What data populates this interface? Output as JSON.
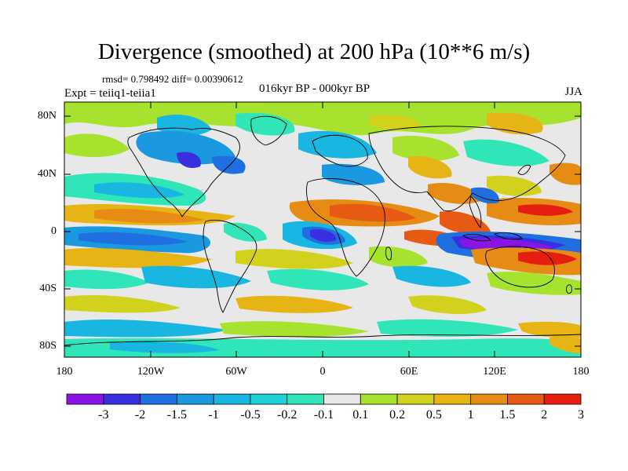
{
  "title": "Divergence (smoothed) at 200 hPa (10**6 m/s)",
  "stats": "rmsd= 0.798492 diff= 0.00390612",
  "experiment": "Expt = teiiq1-teiia1",
  "period": "016kyr BP - 000kyr BP",
  "season": "JJA",
  "lat_labels": [
    "80N",
    "40N",
    "0",
    "40S",
    "80S"
  ],
  "lon_labels": [
    "180",
    "120W",
    "60W",
    "0",
    "60E",
    "120E",
    "180"
  ],
  "colorbar": {
    "labels": [
      "-3",
      "-2",
      "-1.5",
      "-1",
      "-0.5",
      "-0.2",
      "-0.1",
      "0.1",
      "0.2",
      "0.5",
      "1",
      "1.5",
      "2",
      "3"
    ],
    "colors": [
      "#8a14e6",
      "#3a2fe0",
      "#1f6fe0",
      "#1a98e0",
      "#18b6e0",
      "#20d0d8",
      "#30e6b8",
      "#e8e8e8",
      "#a6e22e",
      "#d2d21e",
      "#e6b414",
      "#e68c14",
      "#e65a14",
      "#e61e10"
    ]
  }
}
